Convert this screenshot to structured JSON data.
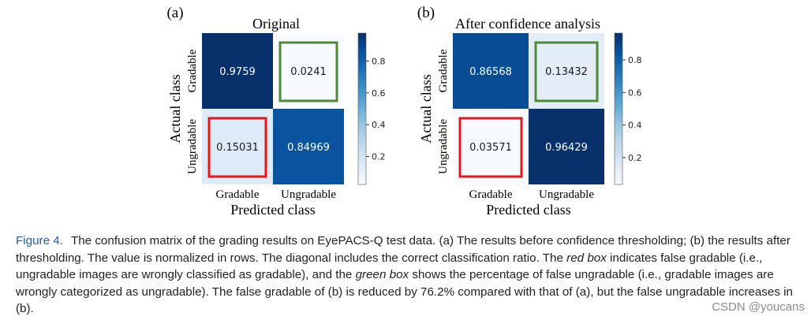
{
  "chart_data": [
    {
      "type": "heatmap",
      "panel_label": "(a)",
      "title": "Original",
      "xlabel": "Predicted class",
      "ylabel": "Actual class",
      "x_categories": [
        "Gradable",
        "Ungradable"
      ],
      "y_categories": [
        "Gradable",
        "Ungradable"
      ],
      "values": [
        [
          0.9759,
          0.0241
        ],
        [
          0.15031,
          0.84969
        ]
      ],
      "value_labels": [
        [
          "0.9759",
          "0.0241"
        ],
        [
          "0.15031",
          "0.84969"
        ]
      ],
      "colorbar_ticks": [
        0.8,
        0.6,
        0.4,
        0.2
      ],
      "colorbar_range": [
        0.0241,
        0.9759
      ],
      "highlight_boxes": [
        {
          "row": 0,
          "col": 1,
          "color": "#4f8a33"
        },
        {
          "row": 1,
          "col": 0,
          "color": "#e8161b"
        }
      ]
    },
    {
      "type": "heatmap",
      "panel_label": "(b)",
      "title": "After confidence analysis",
      "xlabel": "Predicted class",
      "ylabel": "Actual class",
      "x_categories": [
        "Gradable",
        "Ungradable"
      ],
      "y_categories": [
        "Gradable",
        "Ungradable"
      ],
      "values": [
        [
          0.86568,
          0.13432
        ],
        [
          0.03571,
          0.96429
        ]
      ],
      "value_labels": [
        [
          "0.86568",
          "0.13432"
        ],
        [
          "0.03571",
          "0.96429"
        ]
      ],
      "colorbar_ticks": [
        0.8,
        0.6,
        0.4,
        0.2
      ],
      "colorbar_range": [
        0.03571,
        0.96429
      ],
      "highlight_boxes": [
        {
          "row": 0,
          "col": 1,
          "color": "#4f8a33"
        },
        {
          "row": 1,
          "col": 0,
          "color": "#e8161b"
        }
      ]
    }
  ],
  "caption": {
    "label": "Figure 4.",
    "part1": "The confusion matrix of the grading results on EyePACS-Q test data. (a) The results before confidence thresholding; (b) the results after thresholding. The value is normalized in rows. The diagonal includes the correct classification ratio. The ",
    "em1": "red box",
    "part2": " indicates false gradable (i.e., ungradable images are wrongly classified as gradable), and the ",
    "em2": "green box",
    "part3": " shows the percentage of false ungradable (i.e., gradable images are wrongly categorized as ungradable). The false gradable of (b) is reduced by 76.2% compared with that of (a), but the false ungradable increases in (b)."
  },
  "watermark": "CSDN @youcans"
}
